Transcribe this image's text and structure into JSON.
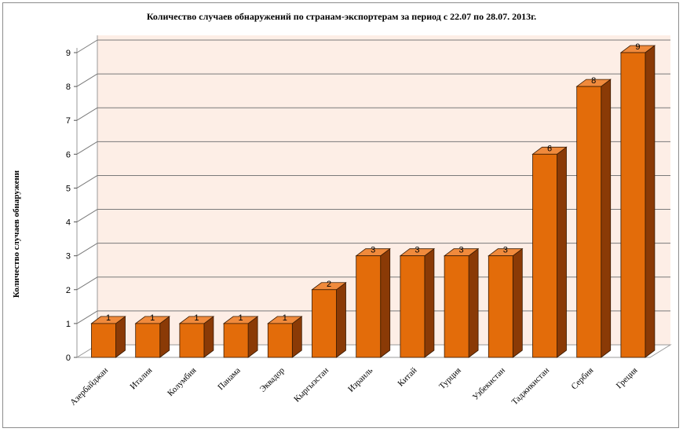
{
  "chart_data": {
    "type": "bar",
    "title": "Количество случаев обнаружений по странам-экспортерам за период с 22.07 по 28.07. 2013г.",
    "ylabel": "Количество случаев обнаружени",
    "xlabel": "",
    "categories": [
      "Азербайджан",
      "Италия",
      "Колумбия",
      "Панама",
      "Эквадор",
      "Кыргызстан",
      "Израиль",
      "Китай",
      "Турция",
      "Узбекистан",
      "Таджикистан",
      "Сербия",
      "Греция"
    ],
    "values": [
      1,
      1,
      1,
      1,
      1,
      2,
      3,
      3,
      3,
      3,
      6,
      8,
      9
    ],
    "data_labels": [
      "1",
      "1",
      "1",
      "1",
      "1",
      "2",
      "3",
      "3",
      "3",
      "3",
      "6",
      "8",
      "9"
    ],
    "yticks": [
      "0",
      "1",
      "2",
      "3",
      "4",
      "5",
      "6",
      "7",
      "8",
      "9"
    ],
    "ylim": [
      0,
      9
    ],
    "grid": true,
    "legend": "none",
    "bar_style": "3d",
    "colors": {
      "bar_front": "#e36c0a",
      "bar_top": "#f08a3c",
      "bar_side": "#8a3a06",
      "bar_edge": "#3a1a00",
      "back_wall": "#fdeee6",
      "grid": "#7a7a7a"
    }
  }
}
